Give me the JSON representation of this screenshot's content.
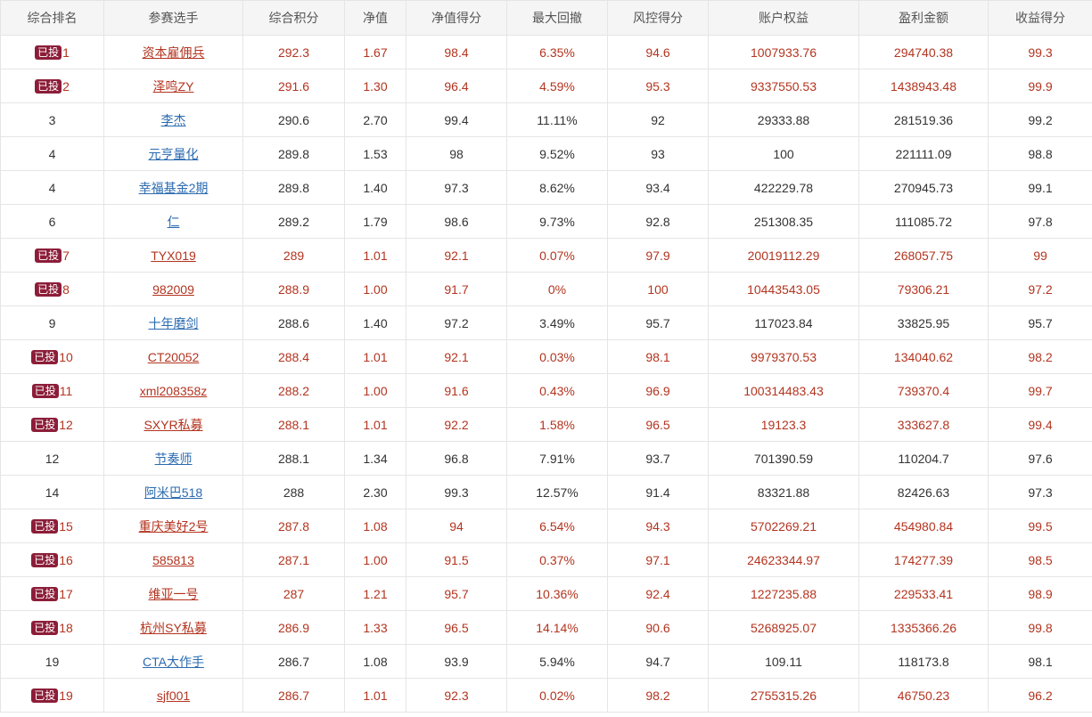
{
  "colors": {
    "header_bg": "#f5f5f5",
    "invested_text": "#b3341f",
    "link_blue": "#2b6bb0",
    "badge_bg": "#8c1d38"
  },
  "badge_label": "已投",
  "headers": [
    "综合排名",
    "参赛选手",
    "综合积分",
    "净值",
    "净值得分",
    "最大回撤",
    "风控得分",
    "账户权益",
    "盈利金额",
    "收益得分"
  ],
  "rows": [
    {
      "invested": true,
      "rank": "1",
      "player": "资本雇佣兵",
      "score": "292.3",
      "nav": "1.67",
      "nav_score": "98.4",
      "max_dd": "6.35%",
      "risk_score": "94.6",
      "equity": "1007933.76",
      "profit": "294740.38",
      "return_score": "99.3"
    },
    {
      "invested": true,
      "rank": "2",
      "player": "泽鸣ZY",
      "score": "291.6",
      "nav": "1.30",
      "nav_score": "96.4",
      "max_dd": "4.59%",
      "risk_score": "95.3",
      "equity": "9337550.53",
      "profit": "1438943.48",
      "return_score": "99.9"
    },
    {
      "invested": false,
      "rank": "3",
      "player": "李杰",
      "score": "290.6",
      "nav": "2.70",
      "nav_score": "99.4",
      "max_dd": "11.11%",
      "risk_score": "92",
      "equity": "29333.88",
      "profit": "281519.36",
      "return_score": "99.2"
    },
    {
      "invested": false,
      "rank": "4",
      "player": "元亨量化",
      "score": "289.8",
      "nav": "1.53",
      "nav_score": "98",
      "max_dd": "9.52%",
      "risk_score": "93",
      "equity": "100",
      "profit": "221111.09",
      "return_score": "98.8"
    },
    {
      "invested": false,
      "rank": "4",
      "player": "幸福基金2期",
      "score": "289.8",
      "nav": "1.40",
      "nav_score": "97.3",
      "max_dd": "8.62%",
      "risk_score": "93.4",
      "equity": "422229.78",
      "profit": "270945.73",
      "return_score": "99.1"
    },
    {
      "invested": false,
      "rank": "6",
      "player": "仁",
      "score": "289.2",
      "nav": "1.79",
      "nav_score": "98.6",
      "max_dd": "9.73%",
      "risk_score": "92.8",
      "equity": "251308.35",
      "profit": "111085.72",
      "return_score": "97.8"
    },
    {
      "invested": true,
      "rank": "7",
      "player": "TYX019",
      "score": "289",
      "nav": "1.01",
      "nav_score": "92.1",
      "max_dd": "0.07%",
      "risk_score": "97.9",
      "equity": "20019112.29",
      "profit": "268057.75",
      "return_score": "99"
    },
    {
      "invested": true,
      "rank": "8",
      "player": "982009",
      "score": "288.9",
      "nav": "1.00",
      "nav_score": "91.7",
      "max_dd": "0%",
      "risk_score": "100",
      "equity": "10443543.05",
      "profit": "79306.21",
      "return_score": "97.2"
    },
    {
      "invested": false,
      "rank": "9",
      "player": "十年磨剑",
      "score": "288.6",
      "nav": "1.40",
      "nav_score": "97.2",
      "max_dd": "3.49%",
      "risk_score": "95.7",
      "equity": "117023.84",
      "profit": "33825.95",
      "return_score": "95.7"
    },
    {
      "invested": true,
      "rank": "10",
      "player": "CT20052",
      "score": "288.4",
      "nav": "1.01",
      "nav_score": "92.1",
      "max_dd": "0.03%",
      "risk_score": "98.1",
      "equity": "9979370.53",
      "profit": "134040.62",
      "return_score": "98.2"
    },
    {
      "invested": true,
      "rank": "11",
      "player": "xml208358z",
      "score": "288.2",
      "nav": "1.00",
      "nav_score": "91.6",
      "max_dd": "0.43%",
      "risk_score": "96.9",
      "equity": "100314483.43",
      "profit": "739370.4",
      "return_score": "99.7"
    },
    {
      "invested": true,
      "rank": "12",
      "player": "SXYR私募",
      "score": "288.1",
      "nav": "1.01",
      "nav_score": "92.2",
      "max_dd": "1.58%",
      "risk_score": "96.5",
      "equity": "19123.3",
      "profit": "333627.8",
      "return_score": "99.4"
    },
    {
      "invested": false,
      "rank": "12",
      "player": "节奏师",
      "score": "288.1",
      "nav": "1.34",
      "nav_score": "96.8",
      "max_dd": "7.91%",
      "risk_score": "93.7",
      "equity": "701390.59",
      "profit": "110204.7",
      "return_score": "97.6"
    },
    {
      "invested": false,
      "rank": "14",
      "player": "阿米巴518",
      "score": "288",
      "nav": "2.30",
      "nav_score": "99.3",
      "max_dd": "12.57%",
      "risk_score": "91.4",
      "equity": "83321.88",
      "profit": "82426.63",
      "return_score": "97.3"
    },
    {
      "invested": true,
      "rank": "15",
      "player": "重庆美好2号",
      "score": "287.8",
      "nav": "1.08",
      "nav_score": "94",
      "max_dd": "6.54%",
      "risk_score": "94.3",
      "equity": "5702269.21",
      "profit": "454980.84",
      "return_score": "99.5"
    },
    {
      "invested": true,
      "rank": "16",
      "player": "585813",
      "score": "287.1",
      "nav": "1.00",
      "nav_score": "91.5",
      "max_dd": "0.37%",
      "risk_score": "97.1",
      "equity": "24623344.97",
      "profit": "174277.39",
      "return_score": "98.5"
    },
    {
      "invested": true,
      "rank": "17",
      "player": "维亚一号",
      "score": "287",
      "nav": "1.21",
      "nav_score": "95.7",
      "max_dd": "10.36%",
      "risk_score": "92.4",
      "equity": "1227235.88",
      "profit": "229533.41",
      "return_score": "98.9"
    },
    {
      "invested": true,
      "rank": "18",
      "player": "杭州SY私募",
      "score": "286.9",
      "nav": "1.33",
      "nav_score": "96.5",
      "max_dd": "14.14%",
      "risk_score": "90.6",
      "equity": "5268925.07",
      "profit": "1335366.26",
      "return_score": "99.8"
    },
    {
      "invested": false,
      "rank": "19",
      "player": "CTA大作手",
      "score": "286.7",
      "nav": "1.08",
      "nav_score": "93.9",
      "max_dd": "5.94%",
      "risk_score": "94.7",
      "equity": "109.11",
      "profit": "118173.8",
      "return_score": "98.1"
    },
    {
      "invested": true,
      "rank": "19",
      "player": "sjf001",
      "score": "286.7",
      "nav": "1.01",
      "nav_score": "92.3",
      "max_dd": "0.02%",
      "risk_score": "98.2",
      "equity": "2755315.26",
      "profit": "46750.23",
      "return_score": "96.2"
    }
  ]
}
